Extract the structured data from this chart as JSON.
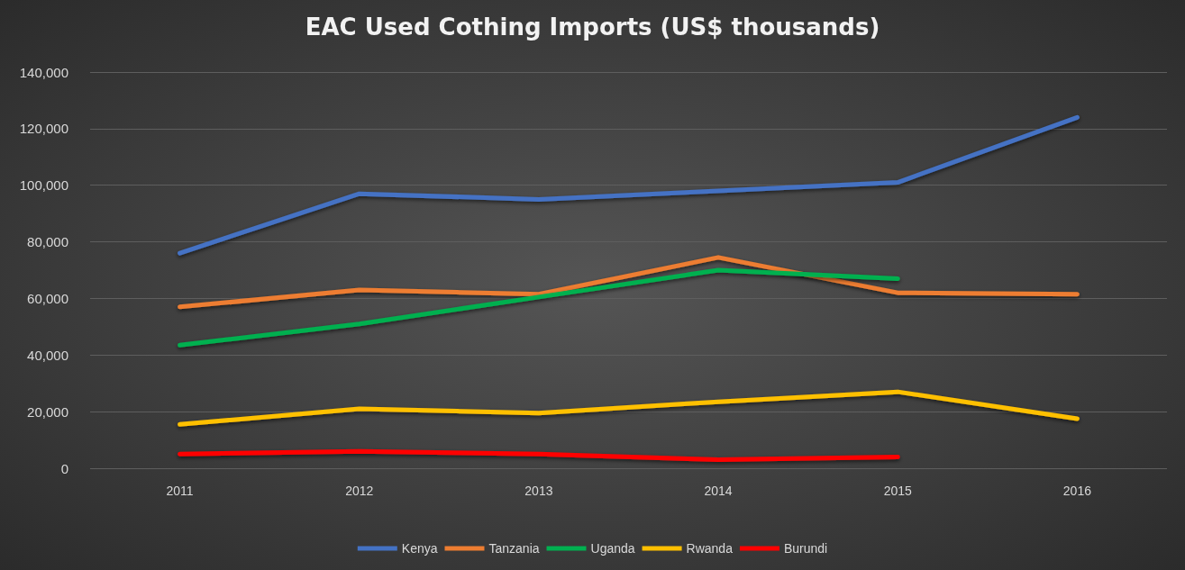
{
  "chart_data": {
    "type": "line",
    "title": "EAC Used Cothing Imports (US$ thousands)",
    "categories": [
      "2011",
      "2012",
      "2013",
      "2014",
      "2015",
      "2016"
    ],
    "series": [
      {
        "name": "Kenya",
        "color": "#4472c4",
        "values": [
          76000,
          97000,
          95000,
          98000,
          101000,
          124000
        ]
      },
      {
        "name": "Tanzania",
        "color": "#ed7d31",
        "values": [
          57000,
          63000,
          61500,
          74500,
          62000,
          61500
        ]
      },
      {
        "name": "Uganda",
        "color": "#00b050",
        "values": [
          43500,
          51000,
          60500,
          70000,
          67000,
          null
        ]
      },
      {
        "name": "Rwanda",
        "color": "#ffc000",
        "values": [
          15500,
          21000,
          19500,
          23500,
          27000,
          17500
        ]
      },
      {
        "name": "Burundi",
        "color": "#ff0000",
        "values": [
          5000,
          6000,
          5000,
          3000,
          4000,
          null
        ]
      }
    ],
    "ylim": [
      0,
      140000
    ],
    "yticks": [
      {
        "value": 0,
        "label": "0"
      },
      {
        "value": 20000,
        "label": "20,000"
      },
      {
        "value": 40000,
        "label": "40,000"
      },
      {
        "value": 60000,
        "label": "60,000"
      },
      {
        "value": 80000,
        "label": "80,000"
      },
      {
        "value": 100000,
        "label": "100,000"
      },
      {
        "value": 120000,
        "label": "120,000"
      },
      {
        "value": 140000,
        "label": "140,000"
      }
    ],
    "grid": "y",
    "legend": "bottom",
    "marker": "none",
    "line_style": "solid"
  }
}
